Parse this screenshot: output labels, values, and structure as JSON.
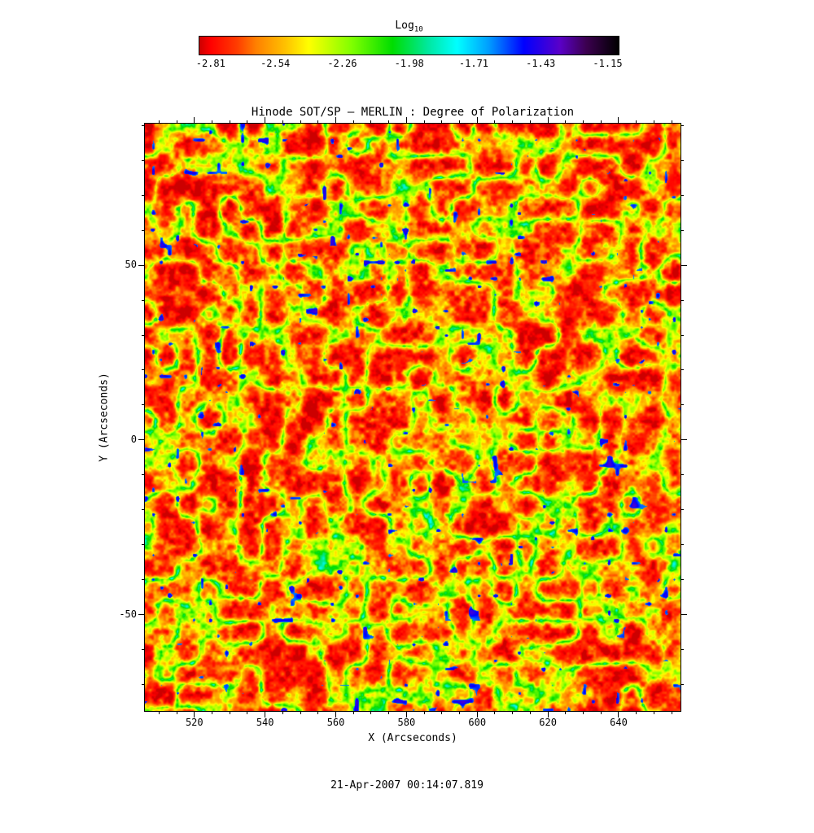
{
  "chart_data": {
    "type": "heatmap",
    "title": "Hinode SOT/SP – MERLIN : Degree of Polarization",
    "xlabel": "X (Arcseconds)",
    "ylabel": "Y (Arcseconds)",
    "xlim": [
      506,
      657.5
    ],
    "ylim": [
      -77.5,
      90.5
    ],
    "x_ticks": [
      520,
      540,
      560,
      580,
      600,
      620,
      640
    ],
    "y_ticks": [
      -50,
      0,
      50
    ],
    "x_minor_step": 5,
    "y_minor_step": 10,
    "grid": false,
    "colorbar": {
      "label": "Log",
      "label_sub": "10",
      "tick_labels": [
        "-2.81",
        "-2.54",
        "-2.26",
        "-1.98",
        "-1.71",
        "-1.43",
        "-1.15"
      ],
      "vmin": -2.857,
      "vmax": -1.104,
      "position": "top"
    },
    "colormap": {
      "stops": [
        {
          "v": -2.857,
          "c": "#cc0000"
        },
        {
          "v": -2.81,
          "c": "#ff0000"
        },
        {
          "v": -2.7,
          "c": "#ff3c00"
        },
        {
          "v": -2.62,
          "c": "#ff8000"
        },
        {
          "v": -2.5,
          "c": "#ffc000"
        },
        {
          "v": -2.4,
          "c": "#ffff00"
        },
        {
          "v": -2.22,
          "c": "#80ff00"
        },
        {
          "v": -2.05,
          "c": "#00dd00"
        },
        {
          "v": -1.9,
          "c": "#00e8a0"
        },
        {
          "v": -1.78,
          "c": "#00ffff"
        },
        {
          "v": -1.65,
          "c": "#00a0ff"
        },
        {
          "v": -1.5,
          "c": "#0000ff"
        },
        {
          "v": -1.35,
          "c": "#5a00c8"
        },
        {
          "v": -1.24,
          "c": "#3c0050"
        },
        {
          "v": -1.104,
          "c": "#000000"
        }
      ]
    },
    "description": "Quiet-Sun degree-of-polarization map: background mostly log10 ≈ -2.8 to -2.5 (red/orange granular field), magnetic-network lanes near -2.4 to -2.1 (yellow/green filamentary web), sparse small patches near -1.6 to -1.4 (blue blobs).",
    "texture": {
      "cell_scale": 26,
      "fine_scale": 6.5,
      "large_scale": 70,
      "speckle_scale": 3,
      "blob_scale": 10,
      "blob_threshold": 0.9,
      "base": -2.92,
      "amplitude": 1.35,
      "gamma": 1.9,
      "weights": [
        0.46,
        0.3,
        0.12,
        0.12
      ]
    }
  },
  "footer": {
    "timestamp": "21-Apr-2007 00:14:07.819"
  }
}
